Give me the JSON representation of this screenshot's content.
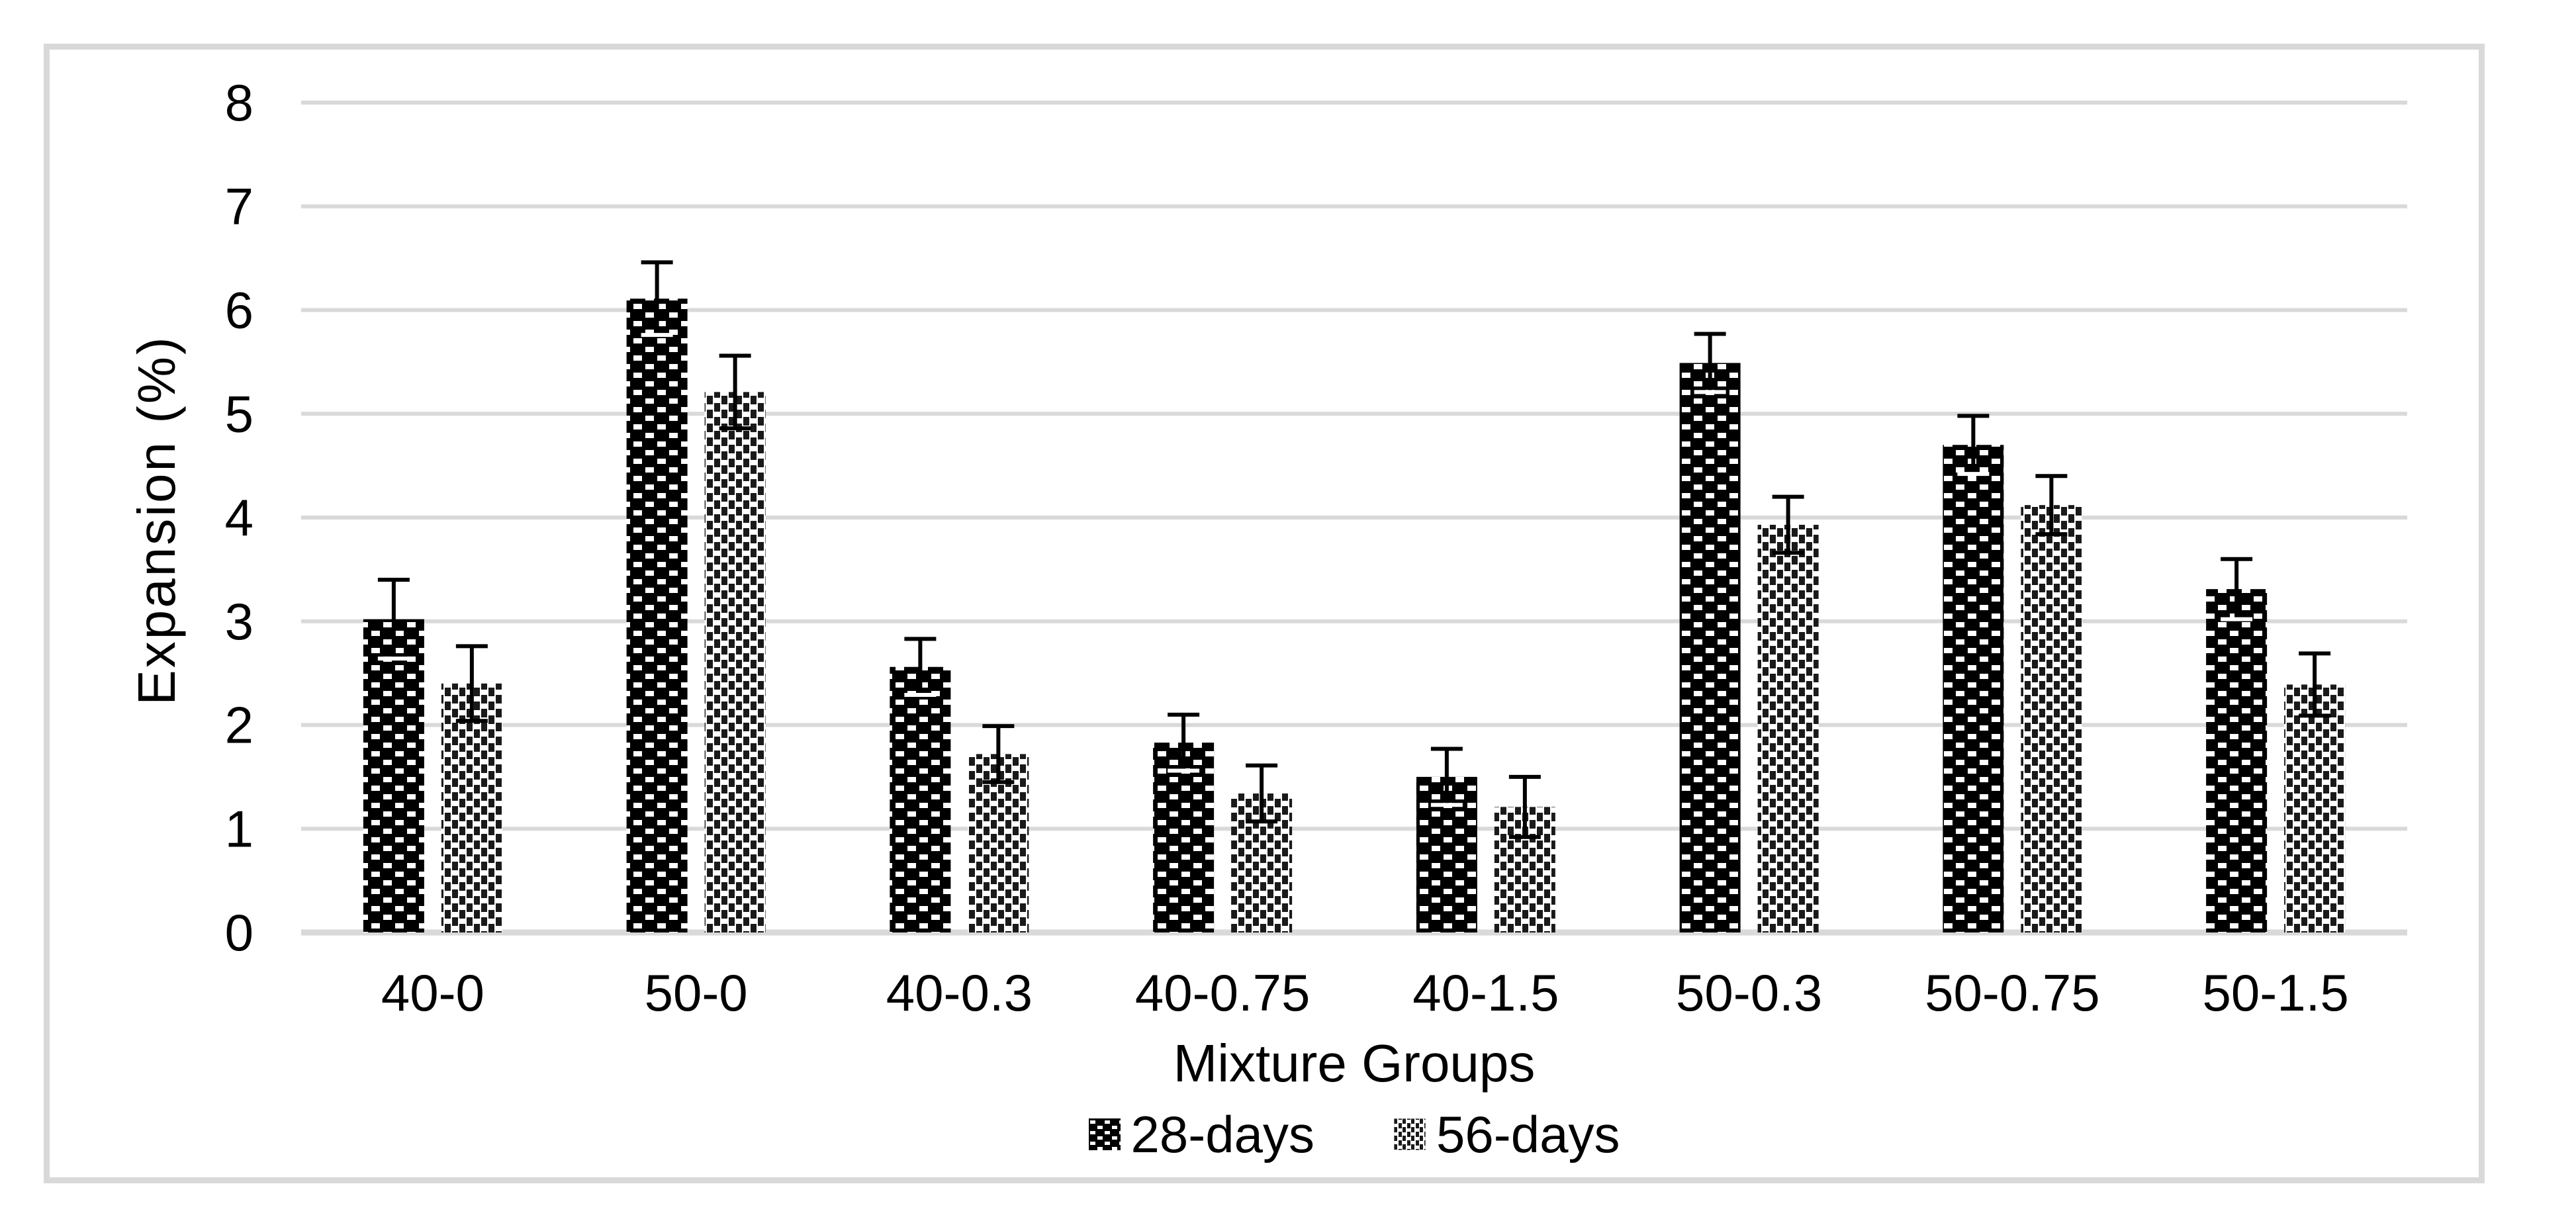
{
  "chart_data": {
    "type": "bar",
    "title": "",
    "xlabel": "Mixture Groups",
    "ylabel": "Expansion (%)",
    "categories": [
      "40-0",
      "50-0",
      "40-0.3",
      "40-0.75",
      "40-1.5",
      "50-0.3",
      "50-0.75",
      "50-1.5"
    ],
    "series": [
      {
        "name": "28-days",
        "pattern": "black-with-white-dots",
        "values": [
          3.02,
          6.11,
          2.56,
          1.83,
          1.5,
          5.49,
          4.7,
          3.31
        ],
        "errors": [
          0.38,
          0.35,
          0.27,
          0.27,
          0.27,
          0.28,
          0.28,
          0.29
        ]
      },
      {
        "name": "56-days",
        "pattern": "white-with-black-dashes",
        "values": [
          2.4,
          5.21,
          1.72,
          1.34,
          1.21,
          3.93,
          4.12,
          2.39
        ],
        "errors": [
          0.36,
          0.35,
          0.27,
          0.27,
          0.29,
          0.27,
          0.28,
          0.3
        ]
      }
    ],
    "ylim": [
      0,
      8
    ],
    "ytick_step": 1,
    "yticks": [
      "0",
      "1",
      "2",
      "3",
      "4",
      "5",
      "6",
      "7",
      "8"
    ],
    "grid": "horizontal-gridlines",
    "legend_position": "bottom",
    "error_bars": "both-directions-with-caps"
  },
  "colors": {
    "bar_dark": "#000000",
    "bar_light_bg": "#ffffff",
    "gridline": "#d9d9d9",
    "frame_border": "#d9d9d9",
    "text": "#000000"
  }
}
